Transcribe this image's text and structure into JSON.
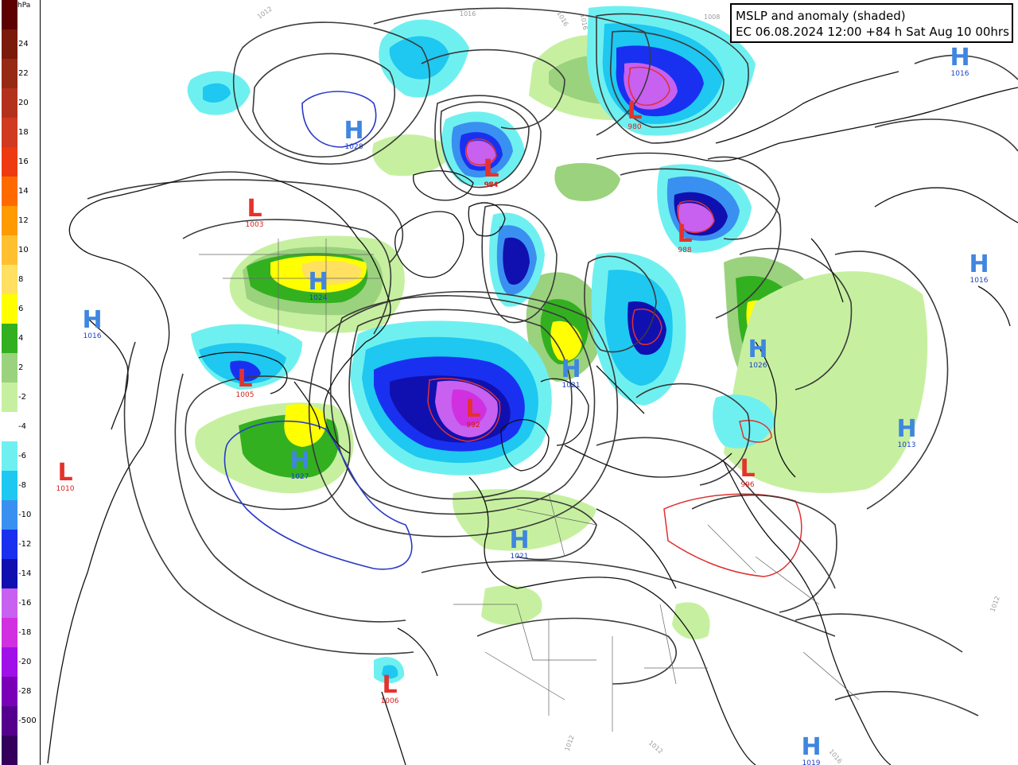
{
  "title": {
    "line1": "MSLP and anomaly (shaded)",
    "line2": "EC 06.08.2024 12:00 +84 h Sat Aug 10 00hrs"
  },
  "colorbar": {
    "unit": "hPa",
    "labels": [
      "24",
      "22",
      "20",
      "18",
      "16",
      "14",
      "12",
      "10",
      "8",
      "6",
      "4",
      "2",
      "-2",
      "-4",
      "-6",
      "-8",
      "-10",
      "-12",
      "-14",
      "-16",
      "-18",
      "-20",
      "-28",
      "-500"
    ],
    "colors": [
      "#5c0000",
      "#7a1a0a",
      "#962a14",
      "#b3321e",
      "#cf3a20",
      "#ee3a10",
      "#ff6a00",
      "#ff9a00",
      "#ffc030",
      "#ffe060",
      "#ffff00",
      "#33b020",
      "#9bd27e",
      "#c6f0a0",
      "#ffffff",
      "#6ff0f0",
      "#1ec8f0",
      "#3a90f0",
      "#1a30f0",
      "#1010b0",
      "#c860f0",
      "#d030e0",
      "#a010e8",
      "#7a00b8",
      "#55008c",
      "#34005c"
    ]
  },
  "pressure_centers": [
    {
      "type": "H",
      "value": "1028"
    },
    {
      "type": "L",
      "value": "984"
    },
    {
      "type": "L",
      "value": "984"
    },
    {
      "type": "L",
      "value": "992"
    },
    {
      "type": "L",
      "value": "1003"
    },
    {
      "type": "H",
      "value": "1024"
    },
    {
      "type": "H",
      "value": "1016"
    },
    {
      "type": "L",
      "value": "988"
    },
    {
      "type": "L",
      "value": "1005"
    },
    {
      "type": "H",
      "value": "1027"
    },
    {
      "type": "L",
      "value": "1010"
    },
    {
      "type": "L",
      "value": "992"
    },
    {
      "type": "H",
      "value": "1021"
    },
    {
      "type": "H",
      "value": "1026"
    },
    {
      "type": "H",
      "value": "1016"
    },
    {
      "type": "H",
      "value": "1013"
    },
    {
      "type": "L",
      "value": "996"
    },
    {
      "type": "H",
      "value": "1021"
    },
    {
      "type": "L",
      "value": "1006"
    },
    {
      "type": "H",
      "value": "1019"
    },
    {
      "type": "L",
      "value": "980"
    },
    {
      "type": "H",
      "value": "1016"
    }
  ],
  "isobar_labels": [
    "1012",
    "1016",
    "1016",
    "1008",
    "1016",
    "1012",
    "1012",
    "1016",
    "1012"
  ]
}
